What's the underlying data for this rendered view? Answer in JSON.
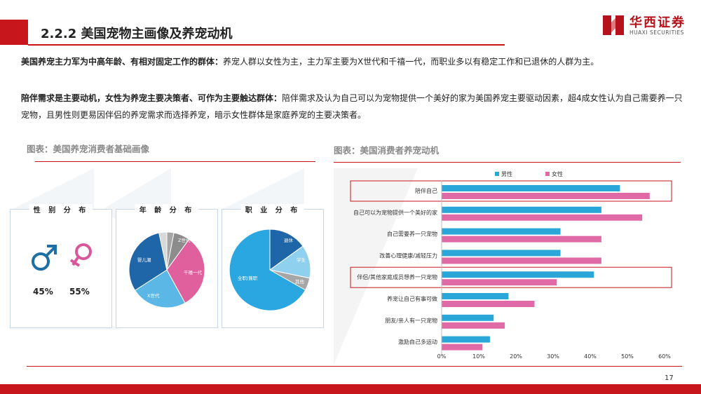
{
  "slide": {
    "title": "2.2.2 美国宠物主画像及养宠动机",
    "page_number": "17",
    "accent_color": "#c8161d"
  },
  "logo": {
    "cn": "华西证券",
    "en": "HUAXI SECURITIES"
  },
  "paragraphs": [
    {
      "bold": "美国养宠主力军为中高年龄、有相对固定工作的群体：",
      "text": "养宠人群以女性为主，主力军主要为X世代和千禧一代，而职业多以有稳定工作和已退休的人群为主。"
    },
    {
      "bold": "陪伴需求是主要动机，女性为养宠主要决策者、可作为主要触达群体：",
      "text": "陪伴需求及认为自己可以为宠物提供一个美好的家为美国养宠主要驱动因素，超4成女性认为自己需要养一只宠物，且男性则更易因伴侣的养宠需求而选择养宠，暗示女性群体是家庭养宠的主要决策者。"
    }
  ],
  "left_figure": {
    "caption": "图表：美国养宠消费者基础画像",
    "gender": {
      "title": "性 别 分 布",
      "male_icon": "male-symbol-icon",
      "female_icon": "female-symbol-icon",
      "male_color": "#1d6fa5",
      "female_color": "#d9589a",
      "male_pct": "45%",
      "female_pct": "55%"
    },
    "age": {
      "title": "年 龄 分 布",
      "labels": {
        "z": "Z世代",
        "millennial": "千禧一代",
        "x": "X世代",
        "boomer": "婴儿潮"
      },
      "colors": {
        "other": "#a6a6a6",
        "z": "#8c8c8c",
        "millennial": "#e0609e",
        "x": "#5bb7e6",
        "boomer": "#1f66a8"
      }
    },
    "job": {
      "title": "职 业 分 布",
      "labels": {
        "retired": "退休",
        "student": "学生",
        "other": "其他",
        "employed": "全职/兼职"
      },
      "colors": {
        "retired": "#1f66a8",
        "student": "#8fd0ee",
        "other": "#a6a6a6",
        "employed": "#2aa6e0"
      }
    }
  },
  "chart_data": {
    "type": "bar",
    "title": "图表：美国消费者养宠动机",
    "orientation": "horizontal",
    "categories": [
      "陪伴自己",
      "自己可以为宠物提供一个美好的家",
      "自己需要养一只宠物",
      "改善心理健康/减轻压力",
      "伴侣/其他家庭成员想养一只宠物",
      "养宠让自己有事可做",
      "朋友/亲人有一只宠物",
      "激励自己多运动"
    ],
    "series": [
      {
        "name": "男性",
        "color": "#2aa6d9",
        "values": [
          48,
          43,
          32,
          32,
          41,
          18,
          14,
          13
        ]
      },
      {
        "name": "女性",
        "color": "#e06aa6",
        "values": [
          56,
          54,
          43,
          43,
          31,
          25,
          17,
          11
        ]
      }
    ],
    "xlim": [
      0,
      60
    ],
    "xticks": [
      "0%",
      "10%",
      "20%",
      "30%",
      "40%",
      "50%",
      "60%"
    ],
    "highlighted_categories": [
      "陪伴自己",
      "伴侣/其他家庭成员想养一只宠物"
    ],
    "highlight_color": "#c8161d",
    "legend": "top"
  }
}
